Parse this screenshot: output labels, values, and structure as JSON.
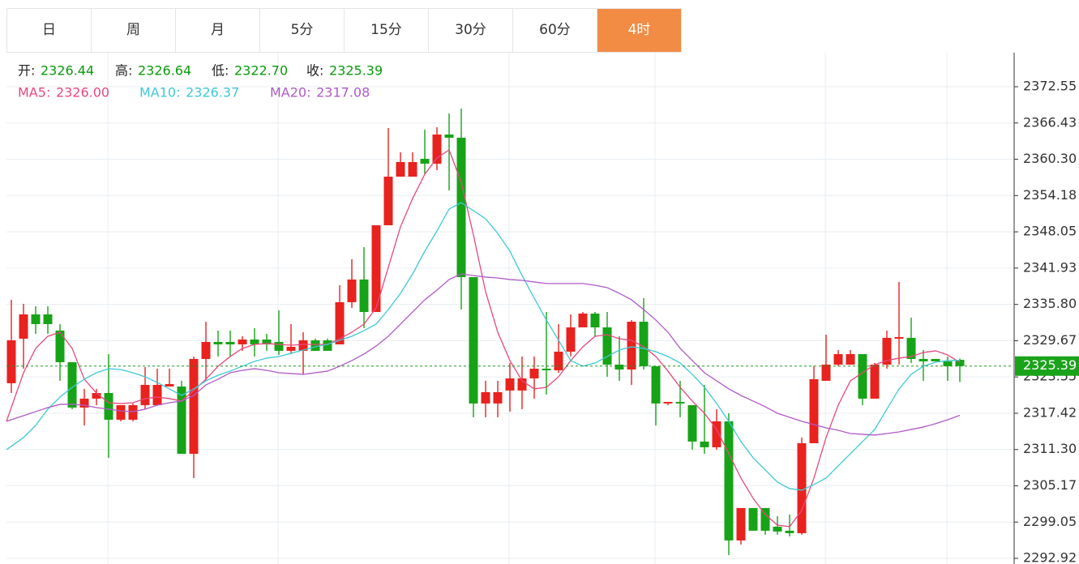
{
  "tabs": [
    "日",
    "周",
    "月",
    "5分",
    "15分",
    "30分",
    "60分",
    "4时"
  ],
  "active_tab": 7,
  "chart_data": {
    "type": "candlestick",
    "info": [
      {
        "label": "开:",
        "value": "2326.44"
      },
      {
        "label": "高:",
        "value": "2326.64"
      },
      {
        "label": "低:",
        "value": "2322.70"
      },
      {
        "label": "收:",
        "value": "2325.39"
      }
    ],
    "up_color": "#e8221e",
    "down_color": "#17a317",
    "ylim": [
      2291.97,
      2378.3
    ],
    "yticks": [
      2372.55,
      2366.43,
      {
        "value": 2360.3,
        "label": "2360.30"
      },
      2354.18,
      2348.05,
      2341.93,
      {
        "value": 2335.8,
        "label": "2335.80"
      },
      2329.67,
      2323.55,
      2317.42,
      {
        "value": 2311.3,
        "label": "2311.30"
      },
      2305.17,
      2299.05,
      2292.92
    ],
    "grid": true,
    "last_price": 2325.39,
    "open": [
      2322.49,
      2330.01,
      2334.11,
      2334.11,
      2331.38,
      2326.04,
      2318.38,
      2319.89,
      2320.84,
      2316.33,
      2316.33,
      2318.79,
      2318.79,
      2321.94,
      2321.94,
      2310.58,
      2326.59,
      2329.46,
      2329.46,
      2329.05,
      2329.87,
      2329.87,
      2329.46,
      2327.96,
      2327.96,
      2329.74,
      2329.74,
      2329.05,
      2336.17,
      2340.0,
      2334.52,
      2349.16,
      2357.37,
      2357.37,
      2360.38,
      2359.56,
      2364.48,
      2363.94,
      2340.41,
      2319.07,
      2319.07,
      2321.26,
      2321.26,
      2323.31,
      2324.95,
      2324.67,
      2327.82,
      2331.92,
      2334.25,
      2331.92,
      2325.63,
      2324.81,
      2332.88,
      2325.36,
      2319.07,
      2319.34,
      2318.79,
      2312.64,
      2311.68,
      2316.06,
      2295.95,
      2301.42,
      2301.42,
      2298.27,
      2297.59,
      2297.18,
      2312.36,
      2322.9,
      2325.63,
      2325.63,
      2327.41,
      2319.89,
      2325.63,
      2330.01,
      2330.15,
      2326.59,
      2326.59,
      2326.18,
      2326.44
    ],
    "high": [
      2336.58,
      2335.89,
      2335.48,
      2335.48,
      2332.47,
      2326.04,
      2321.53,
      2321.53,
      2327.41,
      2318.79,
      2319.07,
      2325.22,
      2324.95,
      2324.95,
      2322.9,
      2327.0,
      2332.88,
      2331.38,
      2331.38,
      2330.42,
      2331.79,
      2330.83,
      2334.8,
      2332.47,
      2331.1,
      2330.01,
      2330.01,
      2339.04,
      2343.42,
      2345.47,
      2349.16,
      2365.58,
      2361.47,
      2361.47,
      2365.3,
      2365.71,
      2368.04,
      2368.86,
      2340.41,
      2322.9,
      2322.9,
      2325.91,
      2327.0,
      2327.0,
      2334.52,
      2332.47,
      2334.11,
      2334.52,
      2334.52,
      2334.52,
      2330.42,
      2333.16,
      2336.85,
      2325.36,
      2319.34,
      2322.9,
      2318.79,
      2322.21,
      2318.11,
      2317.42,
      2301.42,
      2301.42,
      2301.42,
      2300.05,
      2300.32,
      2313.32,
      2325.36,
      2330.69,
      2328.09,
      2328.09,
      2327.41,
      2325.91,
      2331.38,
      2339.59,
      2333.57,
      2328.09,
      2326.59,
      2327.0,
      2326.64
    ],
    "low": [
      2320.84,
      2324.95,
      2330.83,
      2330.83,
      2322.9,
      2318.11,
      2315.37,
      2318.79,
      2309.9,
      2316.06,
      2316.06,
      2318.11,
      2318.79,
      2321.94,
      2310.58,
      2306.48,
      2322.9,
      2327.0,
      2327.0,
      2327.96,
      2327.0,
      2327.96,
      2327.27,
      2327.41,
      2323.99,
      2327.96,
      2327.96,
      2329.05,
      2335.21,
      2331.79,
      2334.52,
      2349.16,
      2357.37,
      2357.37,
      2357.78,
      2358.46,
      2355.04,
      2334.93,
      2316.74,
      2316.74,
      2316.74,
      2317.7,
      2318.11,
      2319.89,
      2320.57,
      2324.26,
      2327.0,
      2331.92,
      2330.42,
      2323.58,
      2322.9,
      2322.21,
      2324.81,
      2315.37,
      2318.79,
      2316.74,
      2311.27,
      2310.58,
      2311.27,
      2293.48,
      2295.26,
      2297.59,
      2296.91,
      2296.91,
      2296.63,
      2296.91,
      2312.36,
      2322.9,
      2325.36,
      2325.63,
      2318.79,
      2319.89,
      2324.95,
      2325.63,
      2325.91,
      2322.9,
      2326.18,
      2322.9,
      2322.7
    ],
    "close": [
      2329.74,
      2334.11,
      2332.47,
      2332.47,
      2326.04,
      2318.38,
      2319.89,
      2320.84,
      2316.33,
      2318.79,
      2318.79,
      2322.21,
      2322.21,
      2322.35,
      2310.58,
      2326.59,
      2329.46,
      2329.05,
      2329.05,
      2329.87,
      2329.05,
      2329.05,
      2327.96,
      2328.64,
      2329.74,
      2327.96,
      2327.96,
      2336.17,
      2340.0,
      2334.52,
      2349.16,
      2357.37,
      2359.83,
      2359.83,
      2359.56,
      2364.48,
      2363.94,
      2340.41,
      2319.07,
      2320.98,
      2320.98,
      2323.31,
      2323.31,
      2324.95,
      2324.67,
      2327.82,
      2331.92,
      2334.25,
      2331.92,
      2325.63,
      2324.81,
      2332.88,
      2325.36,
      2319.07,
      2319.34,
      2319.07,
      2312.64,
      2311.68,
      2316.06,
      2295.95,
      2301.42,
      2297.59,
      2297.59,
      2297.45,
      2297.18,
      2312.36,
      2323.17,
      2325.63,
      2327.41,
      2327.41,
      2319.89,
      2325.63,
      2330.15,
      2330.28,
      2326.59,
      2326.18,
      2326.18,
      2325.36,
      2325.39
    ],
    "series": [
      {
        "name": "MA5",
        "color": "#e8487c",
        "value_label": "2326.00",
        "values": [
          2316.06,
          2324.26,
          2328.37,
          2330.42,
          2331.1,
          2328.37,
          2323.17,
          2320.84,
          2319.2,
          2319.07,
          2319.2,
          2319.89,
          2320.16,
          2319.89,
          2319.48,
          2321.26,
          2323.17,
          2325.36,
          2327.0,
          2328.37,
          2329.05,
          2329.19,
          2329.05,
          2328.91,
          2329.05,
          2329.05,
          2329.05,
          2330.01,
          2331.1,
          2332.47,
          2335.21,
          2342.05,
          2348.89,
          2353.68,
          2357.78,
          2360.52,
          2361.88,
          2356.41,
          2347.52,
          2337.94,
          2331.1,
          2326.32,
          2322.9,
          2321.53,
          2321.8,
          2323.58,
          2326.32,
          2328.64,
          2330.42,
          2330.69,
          2330.01,
          2329.74,
          2328.64,
          2327.0,
          2324.54,
          2321.8,
          2319.48,
          2317.42,
          2314.69,
          2310.58,
          2306.48,
          2303.06,
          2300.32,
          2298.54,
          2298.27,
          2301.01,
          2306.48,
          2313.32,
          2318.79,
          2322.9,
          2324.26,
          2325.63,
          2326.32,
          2326.73,
          2327.0,
          2327.68,
          2327.96,
          2327.27,
          2326.0
        ]
      },
      {
        "name": "MA10",
        "color": "#3ec9d6",
        "value_label": "2326.37",
        "values": [
          2311.27,
          2313.32,
          2315.37,
          2318.11,
          2320.16,
          2321.8,
          2323.17,
          2324.26,
          2324.95,
          2324.81,
          2324.26,
          2323.58,
          2322.62,
          2321.53,
          2320.43,
          2321.53,
          2322.9,
          2323.85,
          2324.54,
          2325.36,
          2326.18,
          2326.73,
          2327.0,
          2327.55,
          2328.09,
          2328.64,
          2329.05,
          2329.74,
          2330.42,
          2331.38,
          2332.47,
          2334.93,
          2337.67,
          2340.95,
          2344.78,
          2348.2,
          2351.9,
          2352.99,
          2351.62,
          2350.26,
          2347.79,
          2344.78,
          2340.68,
          2336.85,
          2333.16,
          2329.74,
          2326.32,
          2325.36,
          2325.91,
          2327.0,
          2328.09,
          2328.64,
          2328.37,
          2327.82,
          2327.0,
          2325.91,
          2323.99,
          2321.8,
          2319.07,
          2316.06,
          2312.64,
          2309.9,
          2307.85,
          2305.8,
          2304.7,
          2304.43,
          2305.39,
          2306.48,
          2308.53,
          2310.58,
          2312.64,
          2314.69,
          2318.11,
          2321.53,
          2323.99,
          2325.36,
          2326.04,
          2326.32,
          2326.37
        ]
      },
      {
        "name": "MA20",
        "color": "#b05ac8",
        "value_label": "2317.08",
        "values": [
          2316.06,
          2317.01,
          2317.7,
          2318.38,
          2318.93,
          2318.93,
          2318.79,
          2318.38,
          2318.11,
          2317.83,
          2317.7,
          2318.11,
          2318.79,
          2319.2,
          2319.48,
          2320.43,
          2322.21,
          2323.17,
          2324.26,
          2324.67,
          2324.95,
          2324.67,
          2324.26,
          2324.13,
          2323.99,
          2324.26,
          2324.54,
          2325.36,
          2326.32,
          2327.41,
          2328.78,
          2330.42,
          2332.47,
          2334.52,
          2336.58,
          2338.22,
          2340.0,
          2340.95,
          2340.68,
          2340.41,
          2340.27,
          2340.0,
          2339.86,
          2339.59,
          2339.32,
          2339.32,
          2339.32,
          2339.32,
          2339.04,
          2338.63,
          2337.67,
          2336.58,
          2334.93,
          2333.16,
          2331.1,
          2328.37,
          2326.32,
          2324.26,
          2322.9,
          2321.53,
          2320.43,
          2319.48,
          2318.52,
          2317.42,
          2316.74,
          2316.06,
          2315.51,
          2314.96,
          2314.55,
          2314.0,
          2313.87,
          2313.73,
          2314.0,
          2314.27,
          2314.69,
          2315.1,
          2315.65,
          2316.33,
          2317.08
        ]
      }
    ]
  }
}
